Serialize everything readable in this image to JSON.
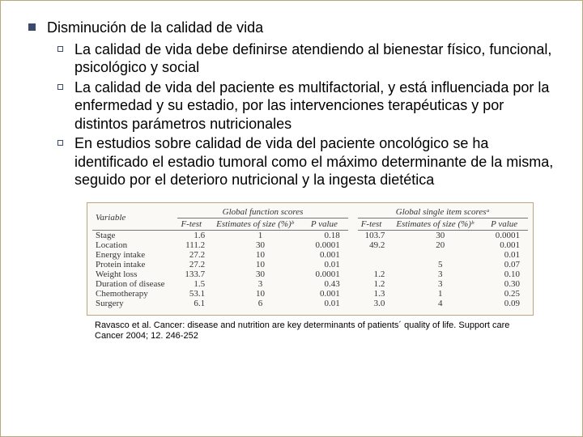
{
  "background_color": "#ffffff",
  "border_color": "#b8a87a",
  "bullet_color": "#3a4a6a",
  "body_fontsize": 18,
  "heading": "Disminución de la calidad de vida",
  "subitems": [
    "La calidad de vida debe definirse atendiendo al bienestar físico, funcional, psicológico y social",
    "La calidad de vida del paciente es multifactorial, y está influenciada por la enfermedad y su estadio, por las intervenciones terapéuticas y por distintos parámetros nutricionales",
    "En estudios sobre calidad de vida del paciente oncológico se ha identificado el estadio tumoral como el máximo determinante de la misma, seguido por el deterioro nutricional y la ingesta dietética"
  ],
  "table": {
    "font_family": "Times New Roman",
    "font_size": 11,
    "header_groups": [
      "Variable",
      "Global function scores",
      "Global single item scoresᵃ"
    ],
    "sub_headers_left": [
      "F-test",
      "Estimates of size (%)ᵇ",
      "P value"
    ],
    "sub_headers_right": [
      "F-test",
      "Estimates of size (%)ᵇ",
      "P value"
    ],
    "rows": [
      {
        "var": "Stage",
        "f1": "1.6",
        "e1": "1",
        "p1": "0.18",
        "f2": "103.7",
        "e2": "30",
        "p2": "0.0001"
      },
      {
        "var": "Location",
        "f1": "111.2",
        "e1": "30",
        "p1": "0.0001",
        "f2": "49.2",
        "e2": "20",
        "p2": "0.001"
      },
      {
        "var": "Energy intake",
        "f1": "27.2",
        "e1": "10",
        "p1": "0.001",
        "f2": "",
        "e2": "",
        "p2": "0.01"
      },
      {
        "var": "Protein intake",
        "f1": "27.2",
        "e1": "10",
        "p1": "0.01",
        "f2": "",
        "e2": "5",
        "p2": "0.07"
      },
      {
        "var": "Weight loss",
        "f1": "133.7",
        "e1": "30",
        "p1": "0.0001",
        "f2": "1.2",
        "e2": "3",
        "p2": "0.10"
      },
      {
        "var": "Duration of disease",
        "f1": "1.5",
        "e1": "3",
        "p1": "0.43",
        "f2": "1.2",
        "e2": "3",
        "p2": "0.30"
      },
      {
        "var": "Chemotherapy",
        "f1": "53.1",
        "e1": "10",
        "p1": "0.001",
        "f2": "1.3",
        "e2": "1",
        "p2": "0.25"
      },
      {
        "var": "Surgery",
        "f1": "6.1",
        "e1": "6",
        "p1": "0.01",
        "f2": "3.0",
        "e2": "4",
        "p2": "0.09"
      }
    ]
  },
  "citation": "Ravasco et al. Cancer: disease and nutrition are key determinants of patients´ quality of life. Support care Cancer 2004; 12. 246-252"
}
